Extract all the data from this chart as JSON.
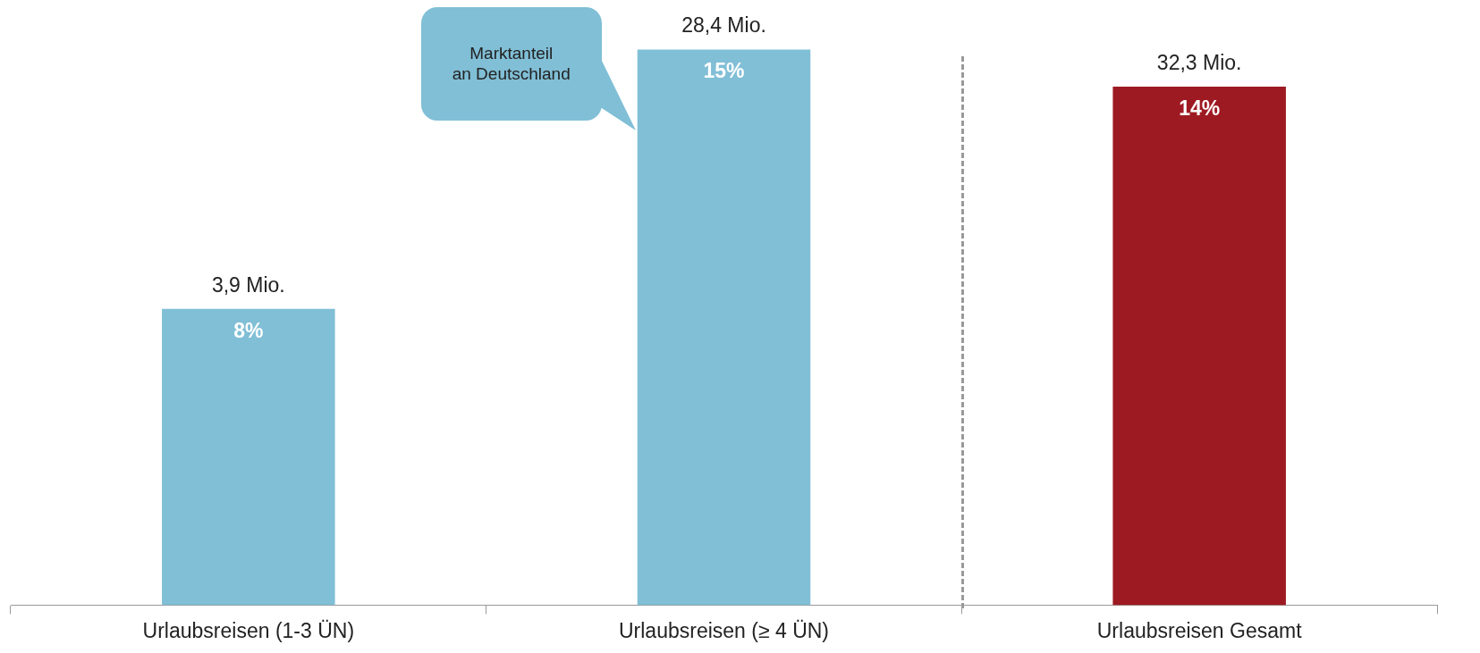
{
  "chart_data": {
    "type": "bar",
    "categories": [
      "Urlaubsreisen (1-3 ÜN)",
      "Urlaubsreisen (≥ 4 ÜN)",
      "Urlaubsreisen Gesamt"
    ],
    "values": [
      8,
      15,
      14
    ],
    "colors": [
      "#80bfd6",
      "#80bfd6",
      "#9e1a22"
    ],
    "value_labels": [
      "8%",
      "15%",
      "14%"
    ],
    "grid": false,
    "legend": false,
    "tick_labels": "x",
    "annotations": [
      "Marktanteil\nan Deutschland",
      {
        "text": "3,9 Mio.",
        "x": "Urlaubsreisen (1-3 ÜN)",
        "y": 8
      },
      {
        "text": "28,4 Mio.",
        "x": "Urlaubsreisen (≥ 4 ÜN)",
        "y": 15
      },
      {
        "text": "32,3 Mio.",
        "x": "Urlaubsreisen Gesamt",
        "y": 14
      }
    ]
  }
}
